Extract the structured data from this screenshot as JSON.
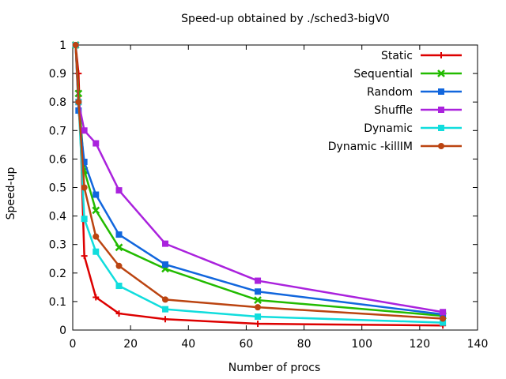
{
  "chart_data": {
    "type": "line",
    "title": "Speed-up obtained by ./sched3-bigV0",
    "xlabel": "Number of procs",
    "ylabel": "Speed-up",
    "xlim": [
      0,
      140
    ],
    "ylim": [
      0,
      1
    ],
    "xticks": [
      "0",
      "20",
      "40",
      "60",
      "80",
      "100",
      "120",
      "140"
    ],
    "yticks": [
      "0",
      "0.1",
      "0.2",
      "0.3",
      "0.4",
      "0.5",
      "0.6",
      "0.7",
      "0.8",
      "0.9",
      "1"
    ],
    "legend_position": "top-right",
    "x": [
      1,
      2,
      4,
      8,
      16,
      32,
      64,
      128
    ],
    "series": [
      {
        "name": "Static",
        "color": "#dd0000",
        "marker": "plus",
        "values": [
          1.0,
          0.9,
          0.26,
          0.115,
          0.058,
          0.038,
          0.022,
          0.016
        ]
      },
      {
        "name": "Sequential",
        "color": "#22bb00",
        "marker": "cross",
        "values": [
          1.0,
          0.83,
          0.56,
          0.42,
          0.29,
          0.215,
          0.105,
          0.05
        ]
      },
      {
        "name": "Random",
        "color": "#1166dd",
        "marker": "square",
        "values": [
          1.0,
          0.77,
          0.59,
          0.475,
          0.335,
          0.23,
          0.135,
          0.055
        ]
      },
      {
        "name": "Shuffle",
        "color": "#aa22dd",
        "marker": "square",
        "values": [
          1.0,
          0.8,
          0.7,
          0.655,
          0.49,
          0.303,
          0.173,
          0.063
        ]
      },
      {
        "name": "Dynamic",
        "color": "#11dddd",
        "marker": "square",
        "values": [
          1.0,
          0.8,
          0.39,
          0.275,
          0.155,
          0.073,
          0.047,
          0.026
        ]
      },
      {
        "name": "Dynamic -killIM",
        "color": "#bb4411",
        "marker": "circle",
        "values": [
          1.0,
          0.8,
          0.5,
          0.328,
          0.225,
          0.107,
          0.08,
          0.04
        ]
      }
    ]
  }
}
